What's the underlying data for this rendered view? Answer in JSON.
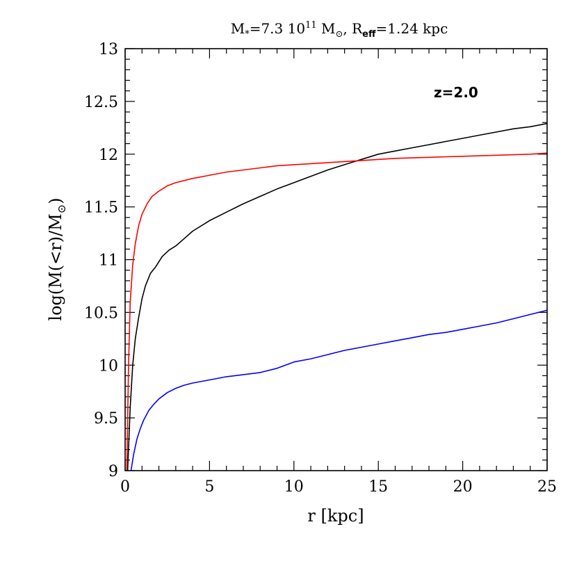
{
  "chart_data": {
    "type": "line",
    "title": {
      "m_symbol": "M",
      "m_sub": "*",
      "m_value": "=7.3  10",
      "m_exp": "11",
      "m_unit": " M",
      "m_unit_sub": "⊙",
      "r_sep": ", R",
      "r_sub": "eff",
      "r_value": "=1.24 kpc"
    },
    "xlabel": "r [kpc]",
    "ylabel": {
      "main": "log(M(<r)/M",
      "sub": "⊙",
      "close": ")"
    },
    "annotation": "z=2.0",
    "xlim": [
      0,
      25
    ],
    "ylim": [
      9,
      13
    ],
    "x_major_ticks": [
      0,
      5,
      10,
      15,
      20,
      25
    ],
    "x_tick_labels": [
      "0",
      "5",
      "10",
      "15",
      "20",
      "25"
    ],
    "y_major_ticks": [
      9,
      9.5,
      10,
      10.5,
      11,
      11.5,
      12,
      12.5,
      13
    ],
    "y_tick_labels": [
      "9",
      "9.5",
      "10",
      "10.5",
      "11",
      "11.5",
      "12",
      "12.5",
      "13"
    ],
    "x_minor_step": 1,
    "y_minor_step": 0.1,
    "series": [
      {
        "color": "#000000",
        "x": [
          0.15,
          0.3,
          0.45,
          0.6,
          0.8,
          1.0,
          1.2,
          1.5,
          1.8,
          2.2,
          2.6,
          3.0,
          3.5,
          4.0,
          5.0,
          6.0,
          7.0,
          8.0,
          9.0,
          10.0,
          11.0,
          12.0,
          13.0,
          14.0,
          15.0,
          16.0,
          17.0,
          18.0,
          19.0,
          20.0,
          21.0,
          22.0,
          23.0,
          24.0,
          25.0
        ],
        "y": [
          9.0,
          9.6,
          10.0,
          10.25,
          10.45,
          10.63,
          10.75,
          10.87,
          10.93,
          11.03,
          11.09,
          11.13,
          11.2,
          11.27,
          11.37,
          11.45,
          11.53,
          11.6,
          11.67,
          11.73,
          11.79,
          11.85,
          11.9,
          11.95,
          12.0,
          12.03,
          12.06,
          12.09,
          12.12,
          12.15,
          12.18,
          12.21,
          12.24,
          12.26,
          12.29
        ]
      },
      {
        "color": "#ff0000",
        "x": [
          0.1,
          0.2,
          0.3,
          0.45,
          0.6,
          0.8,
          1.0,
          1.3,
          1.6,
          2.0,
          2.5,
          3.0,
          4.0,
          5.0,
          6.0,
          7.0,
          8.0,
          9.0,
          10.0,
          12.0,
          14.0,
          16.0,
          18.0,
          20.0,
          22.0,
          24.0,
          25.0
        ],
        "y": [
          9.0,
          10.0,
          10.6,
          10.95,
          11.15,
          11.32,
          11.43,
          11.53,
          11.6,
          11.65,
          11.7,
          11.73,
          11.77,
          11.8,
          11.83,
          11.85,
          11.87,
          11.89,
          11.9,
          11.92,
          11.94,
          11.96,
          11.97,
          11.98,
          11.99,
          12.0,
          12.01
        ]
      },
      {
        "color": "#0000ff",
        "x": [
          0.35,
          0.5,
          0.7,
          0.9,
          1.1,
          1.4,
          1.7,
          2.0,
          2.5,
          3.0,
          3.5,
          4.0,
          5.0,
          6.0,
          7.0,
          8.0,
          9.0,
          10.0,
          11.0,
          12.0,
          13.0,
          14.0,
          15.0,
          16.0,
          17.0,
          18.0,
          19.0,
          20.0,
          21.0,
          22.0,
          23.0,
          24.0,
          25.0
        ],
        "y": [
          9.0,
          9.15,
          9.3,
          9.4,
          9.48,
          9.57,
          9.63,
          9.68,
          9.74,
          9.78,
          9.81,
          9.83,
          9.86,
          9.89,
          9.91,
          9.93,
          9.97,
          10.03,
          10.06,
          10.1,
          10.14,
          10.17,
          10.2,
          10.23,
          10.26,
          10.29,
          10.31,
          10.34,
          10.37,
          10.4,
          10.44,
          10.48,
          10.52
        ]
      }
    ]
  }
}
